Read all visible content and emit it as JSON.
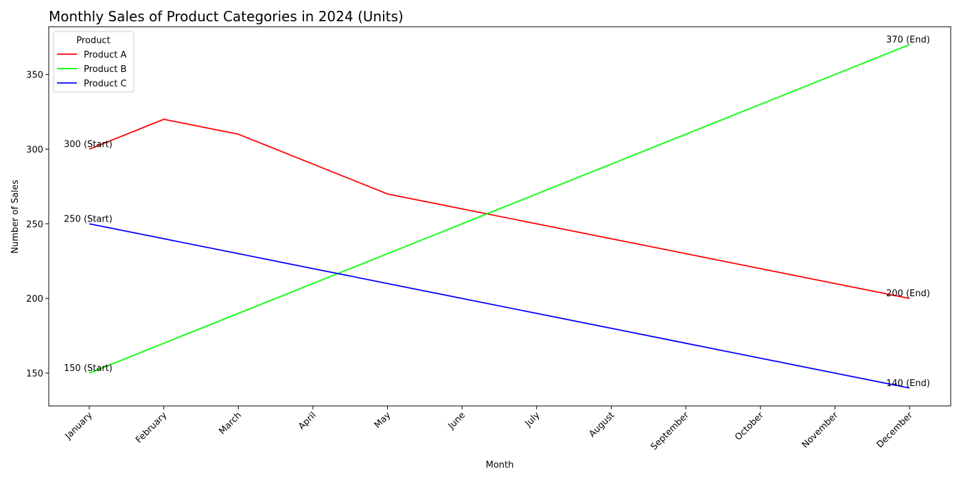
{
  "chart_data": {
    "type": "line",
    "title": "Monthly Sales of Product Categories in 2024 (Units)",
    "xlabel": "Month",
    "ylabel": "Number of Sales",
    "categories": [
      "January",
      "February",
      "March",
      "April",
      "May",
      "June",
      "July",
      "August",
      "September",
      "October",
      "November",
      "December"
    ],
    "ylim": [
      128,
      382
    ],
    "yticks": [
      150,
      200,
      250,
      300,
      350
    ],
    "grid": false,
    "legend": {
      "title": "Product",
      "placement": "top-left"
    },
    "series": [
      {
        "name": "Product A",
        "color": "#ff0000",
        "values": [
          300,
          320,
          310,
          290,
          270,
          260,
          250,
          240,
          230,
          220,
          210,
          200
        ],
        "start_label": "300 (Start)",
        "end_label": "200 (End)"
      },
      {
        "name": "Product B",
        "color": "#00ff00",
        "values": [
          150,
          170,
          190,
          210,
          230,
          250,
          270,
          290,
          310,
          330,
          350,
          370
        ],
        "start_label": "150 (Start)",
        "end_label": "370 (End)"
      },
      {
        "name": "Product C",
        "color": "#0000ff",
        "values": [
          250,
          240,
          230,
          220,
          210,
          200,
          190,
          180,
          170,
          160,
          150,
          140
        ],
        "start_label": "250 (Start)",
        "end_label": "140 (End)"
      }
    ]
  }
}
